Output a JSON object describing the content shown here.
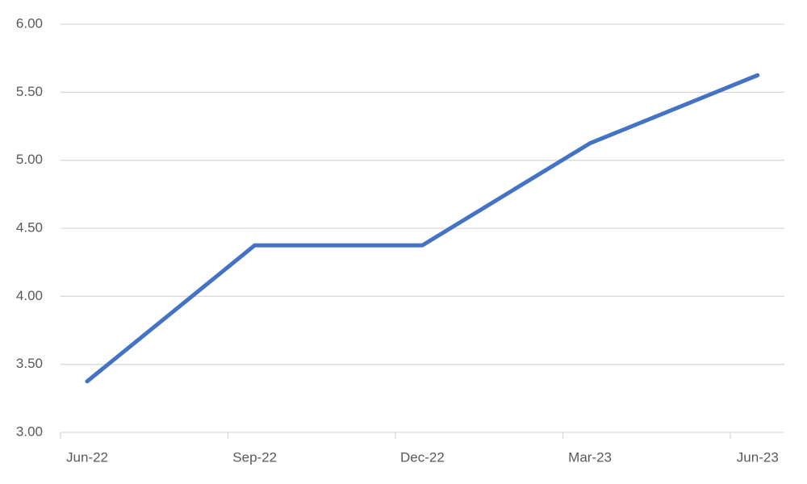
{
  "chart_data": {
    "type": "line",
    "categories": [
      "Jun-22",
      "Sep-22",
      "Dec-22",
      "Mar-23",
      "Jun-23"
    ],
    "series": [
      {
        "color": "#4472c4",
        "values": [
          3.375,
          4.375,
          4.375,
          5.125,
          5.625
        ]
      }
    ],
    "ylim": [
      3,
      6
    ],
    "yticks": [
      {
        "value": 3,
        "label": "3.00"
      },
      {
        "value": 3.5,
        "label": "3.50"
      },
      {
        "value": 4,
        "label": "4.00"
      },
      {
        "value": 4.5,
        "label": "4.50"
      },
      {
        "value": 5,
        "label": "5.00"
      },
      {
        "value": 5.5,
        "label": "5.50"
      },
      {
        "value": 6,
        "label": "6.00"
      }
    ],
    "grid": true
  }
}
